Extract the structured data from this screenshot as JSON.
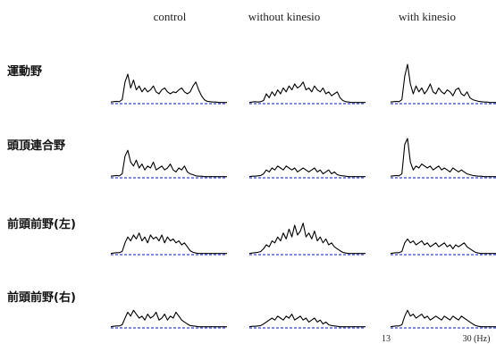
{
  "chart_data": {
    "type": "line",
    "columns": [
      "control",
      "without kinesio",
      "with kinesio"
    ],
    "rows": [
      "運動野",
      "頭頂連合野",
      "前頭前野(左)",
      "前頭前野(右)"
    ],
    "x_ticks": [
      "13",
      "30 (Hz)"
    ],
    "panels": [
      [
        [
          0.04,
          0.05,
          0.06,
          0.05,
          0.1,
          0.55,
          0.75,
          0.4,
          0.6,
          0.35,
          0.45,
          0.3,
          0.4,
          0.3,
          0.35,
          0.45,
          0.3,
          0.25,
          0.35,
          0.4,
          0.3,
          0.25,
          0.3,
          0.28,
          0.35,
          0.4,
          0.3,
          0.25,
          0.3,
          0.45,
          0.55,
          0.35,
          0.2,
          0.1,
          0.06,
          0.05,
          0.04,
          0.04,
          0.03,
          0.03,
          0.03,
          0.03
        ],
        [
          0.03,
          0.04,
          0.05,
          0.04,
          0.05,
          0.08,
          0.25,
          0.15,
          0.3,
          0.2,
          0.35,
          0.25,
          0.4,
          0.3,
          0.45,
          0.35,
          0.5,
          0.4,
          0.45,
          0.55,
          0.35,
          0.4,
          0.3,
          0.45,
          0.35,
          0.3,
          0.4,
          0.25,
          0.3,
          0.2,
          0.25,
          0.3,
          0.15,
          0.08,
          0.05,
          0.04,
          0.03,
          0.03,
          0.03,
          0.03,
          0.03,
          0.03
        ],
        [
          0.04,
          0.05,
          0.06,
          0.05,
          0.1,
          0.7,
          1.0,
          0.5,
          0.25,
          0.45,
          0.3,
          0.4,
          0.25,
          0.35,
          0.5,
          0.3,
          0.25,
          0.4,
          0.3,
          0.25,
          0.35,
          0.3,
          0.2,
          0.35,
          0.4,
          0.25,
          0.2,
          0.3,
          0.15,
          0.1,
          0.08,
          0.06,
          0.05,
          0.04,
          0.04,
          0.03,
          0.03,
          0.03,
          0.03,
          0.03,
          0.03,
          0.03
        ]
      ],
      [
        [
          0.04,
          0.05,
          0.06,
          0.05,
          0.1,
          0.55,
          0.7,
          0.4,
          0.3,
          0.45,
          0.25,
          0.35,
          0.2,
          0.3,
          0.25,
          0.4,
          0.2,
          0.25,
          0.3,
          0.2,
          0.25,
          0.35,
          0.2,
          0.15,
          0.25,
          0.2,
          0.3,
          0.15,
          0.1,
          0.08,
          0.05,
          0.04,
          0.04,
          0.03,
          0.03,
          0.03,
          0.03,
          0.03,
          0.03,
          0.03,
          0.03,
          0.03
        ],
        [
          0.03,
          0.04,
          0.04,
          0.05,
          0.06,
          0.1,
          0.2,
          0.15,
          0.25,
          0.2,
          0.3,
          0.25,
          0.2,
          0.3,
          0.25,
          0.2,
          0.25,
          0.15,
          0.2,
          0.25,
          0.2,
          0.15,
          0.2,
          0.25,
          0.15,
          0.2,
          0.1,
          0.15,
          0.2,
          0.1,
          0.15,
          0.08,
          0.06,
          0.05,
          0.04,
          0.03,
          0.03,
          0.03,
          0.03,
          0.03,
          0.03,
          0.03
        ],
        [
          0.04,
          0.05,
          0.06,
          0.05,
          0.1,
          0.85,
          1.0,
          0.4,
          0.2,
          0.3,
          0.25,
          0.35,
          0.3,
          0.25,
          0.3,
          0.2,
          0.25,
          0.3,
          0.2,
          0.25,
          0.2,
          0.15,
          0.25,
          0.2,
          0.15,
          0.2,
          0.15,
          0.1,
          0.08,
          0.06,
          0.05,
          0.04,
          0.04,
          0.03,
          0.03,
          0.03,
          0.03,
          0.03,
          0.03,
          0.03,
          0.03,
          0.03
        ]
      ],
      [
        [
          0.03,
          0.04,
          0.05,
          0.05,
          0.08,
          0.3,
          0.45,
          0.35,
          0.5,
          0.4,
          0.55,
          0.35,
          0.45,
          0.3,
          0.5,
          0.4,
          0.45,
          0.35,
          0.5,
          0.3,
          0.45,
          0.35,
          0.4,
          0.3,
          0.35,
          0.25,
          0.3,
          0.2,
          0.1,
          0.06,
          0.04,
          0.03,
          0.03,
          0.03,
          0.03,
          0.03,
          0.03,
          0.03,
          0.03,
          0.03,
          0.03,
          0.03
        ],
        [
          0.03,
          0.04,
          0.05,
          0.06,
          0.08,
          0.15,
          0.25,
          0.2,
          0.35,
          0.3,
          0.45,
          0.35,
          0.55,
          0.4,
          0.65,
          0.45,
          0.75,
          0.5,
          0.6,
          0.8,
          0.45,
          0.55,
          0.4,
          0.6,
          0.35,
          0.45,
          0.3,
          0.4,
          0.25,
          0.3,
          0.2,
          0.15,
          0.1,
          0.06,
          0.04,
          0.03,
          0.03,
          0.03,
          0.03,
          0.03,
          0.03,
          0.03
        ],
        [
          0.03,
          0.04,
          0.05,
          0.05,
          0.08,
          0.3,
          0.4,
          0.3,
          0.35,
          0.25,
          0.3,
          0.35,
          0.25,
          0.3,
          0.2,
          0.25,
          0.3,
          0.2,
          0.25,
          0.3,
          0.2,
          0.25,
          0.15,
          0.25,
          0.2,
          0.25,
          0.3,
          0.2,
          0.15,
          0.1,
          0.06,
          0.04,
          0.03,
          0.03,
          0.03,
          0.03,
          0.03,
          0.03,
          0.03,
          0.03,
          0.03,
          0.03
        ]
      ],
      [
        [
          0.03,
          0.04,
          0.05,
          0.05,
          0.08,
          0.25,
          0.4,
          0.3,
          0.45,
          0.35,
          0.25,
          0.3,
          0.2,
          0.35,
          0.25,
          0.3,
          0.4,
          0.2,
          0.25,
          0.35,
          0.2,
          0.3,
          0.25,
          0.4,
          0.3,
          0.2,
          0.15,
          0.1,
          0.06,
          0.05,
          0.04,
          0.03,
          0.03,
          0.03,
          0.03,
          0.03,
          0.03,
          0.03,
          0.03,
          0.03,
          0.03,
          0.03
        ],
        [
          0.03,
          0.04,
          0.04,
          0.05,
          0.06,
          0.1,
          0.15,
          0.2,
          0.25,
          0.2,
          0.3,
          0.25,
          0.2,
          0.3,
          0.25,
          0.35,
          0.2,
          0.25,
          0.3,
          0.2,
          0.25,
          0.15,
          0.2,
          0.25,
          0.15,
          0.2,
          0.1,
          0.15,
          0.08,
          0.06,
          0.05,
          0.04,
          0.03,
          0.03,
          0.03,
          0.03,
          0.03,
          0.03,
          0.03,
          0.03,
          0.03,
          0.03
        ],
        [
          0.03,
          0.04,
          0.05,
          0.05,
          0.08,
          0.3,
          0.45,
          0.3,
          0.35,
          0.25,
          0.3,
          0.35,
          0.25,
          0.3,
          0.2,
          0.25,
          0.3,
          0.25,
          0.2,
          0.3,
          0.25,
          0.2,
          0.3,
          0.25,
          0.2,
          0.3,
          0.25,
          0.2,
          0.15,
          0.1,
          0.06,
          0.04,
          0.03,
          0.03,
          0.03,
          0.03,
          0.03,
          0.03,
          0.03,
          0.03,
          0.03,
          0.03
        ]
      ]
    ]
  }
}
